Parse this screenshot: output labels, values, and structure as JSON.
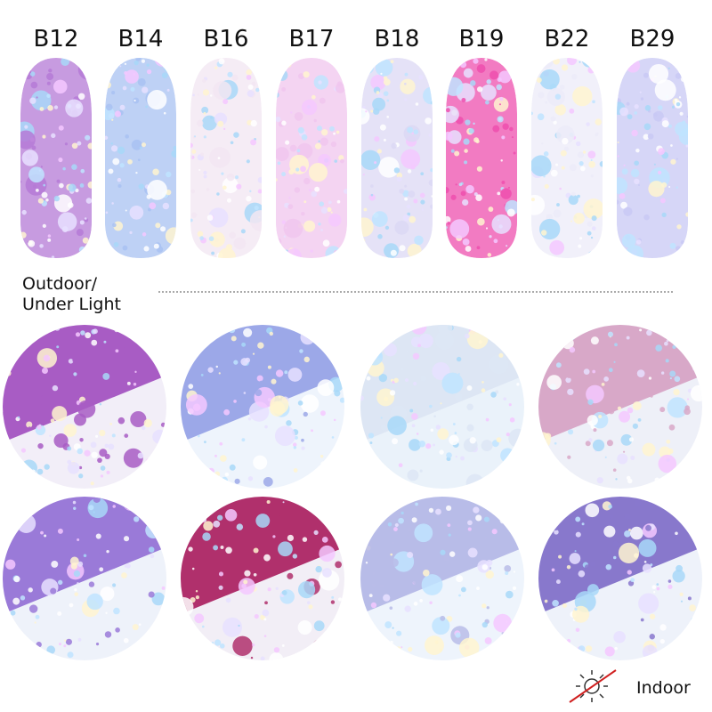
{
  "nails": [
    {
      "label": "B12"
    },
    {
      "label": "B14"
    },
    {
      "label": "B16"
    },
    {
      "label": "B17"
    },
    {
      "label": "B18"
    },
    {
      "label": "B19"
    },
    {
      "label": "B22"
    },
    {
      "label": "B29"
    }
  ],
  "legend": {
    "outdoor": "Outdoor/",
    "under_light": "Under Light",
    "indoor": "Indoor"
  }
}
